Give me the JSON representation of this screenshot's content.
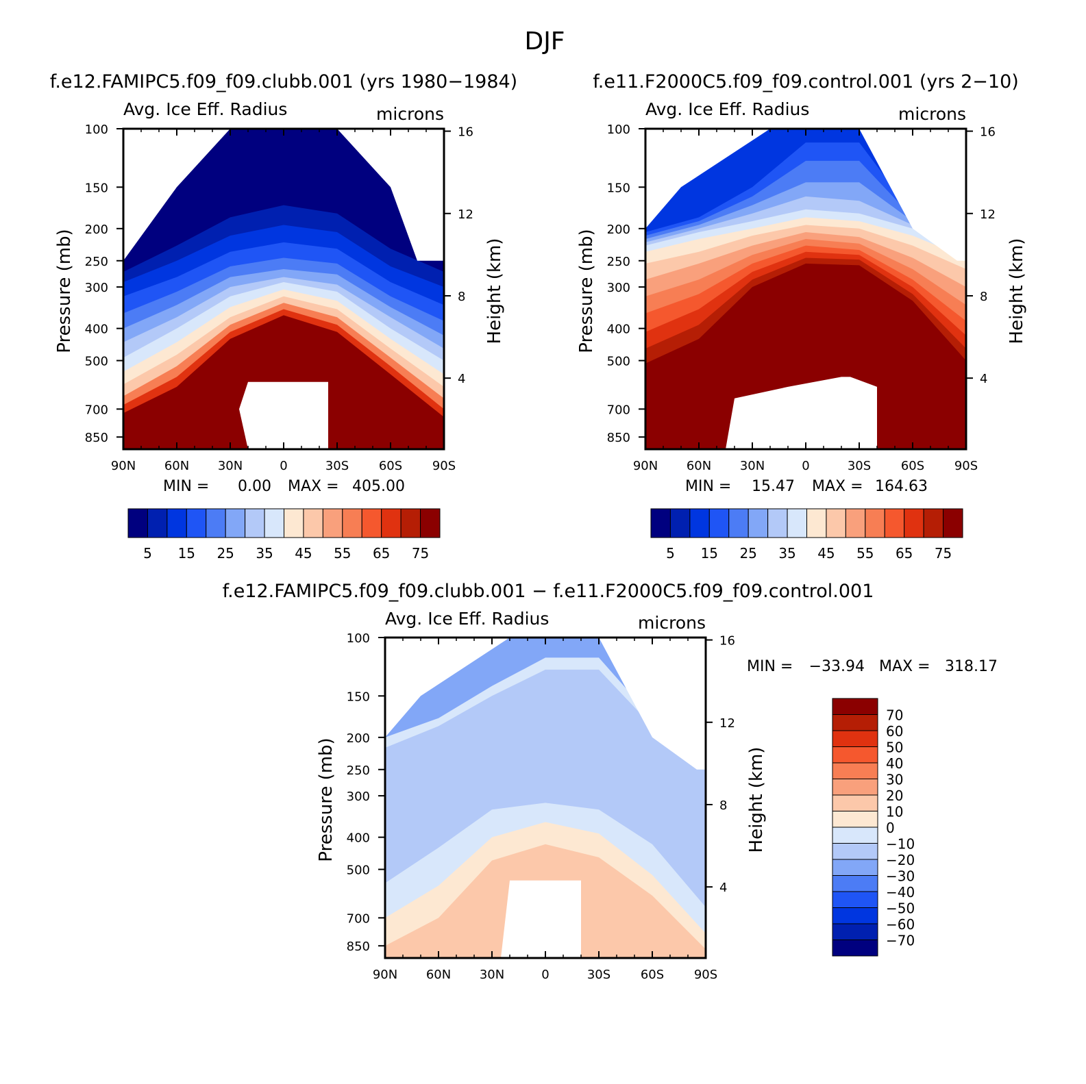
{
  "title": "DJF",
  "colors": {
    "scale_abs": [
      "#00007f",
      "#0020b0",
      "#0036e0",
      "#1f55f5",
      "#4c7cf5",
      "#82a7f7",
      "#b3c9f8",
      "#d8e7fb",
      "#fde8d2",
      "#fcc8aa",
      "#f9a07c",
      "#f77e54",
      "#f5582e",
      "#e03210",
      "#b51e05",
      "#8b0000"
    ],
    "scale_diff": [
      "#00007f",
      "#0020b0",
      "#0036e0",
      "#1f55f5",
      "#4c7cf5",
      "#82a7f7",
      "#b3c9f8",
      "#d8e7fb",
      "#fde8d2",
      "#fcc8aa",
      "#f9a07c",
      "#f77e54",
      "#f5582e",
      "#e03210",
      "#b51e05",
      "#8b0000"
    ]
  },
  "panels": [
    {
      "id": "clubb",
      "header": "f.e12.FAMIPC5.f09_f09.clubb.001 (yrs 1980−1984)",
      "left_label": "Avg. Ice Eff. Radius",
      "right_label": "microns",
      "ylabel": "Pressure (mb)",
      "y2label": "Height (km)",
      "min_label": "MIN =",
      "min_value": "0.00",
      "max_label": "MAX =",
      "max_value": "405.00"
    },
    {
      "id": "control",
      "header": "f.e11.F2000C5.f09_f09.control.001 (yrs 2−10)",
      "left_label": "Avg. Ice Eff. Radius",
      "right_label": "microns",
      "ylabel": "Pressure (mb)",
      "y2label": "Height (km)",
      "min_label": "MIN =",
      "min_value": "15.47",
      "max_label": "MAX =",
      "max_value": "164.63"
    },
    {
      "id": "diff",
      "header": "f.e12.FAMIPC5.f09_f09.clubb.001 − f.e11.F2000C5.f09_f09.control.001",
      "left_label": "Avg. Ice Eff. Radius",
      "right_label": "microns",
      "ylabel": "Pressure (mb)",
      "y2label": "Height (km)",
      "min_label": "MIN =",
      "min_value": "−33.94",
      "max_label": "MAX =",
      "max_value": "318.17"
    }
  ],
  "chart_data": [
    {
      "type": "heatmap",
      "title": "f.e12.FAMIPC5.f09_f09.clubb.001 (yrs 1980−1984)",
      "subtitle_left": "Avg. Ice Eff. Radius",
      "units": "microns",
      "xlabel": "",
      "ylabel": "Pressure (mb)",
      "y2label": "Height (km)",
      "x_ticks": [
        "90N",
        "60N",
        "30N",
        "0",
        "30S",
        "60S",
        "90S"
      ],
      "x_range": [
        90,
        -90
      ],
      "y_ticks": [
        100,
        150,
        200,
        250,
        300,
        400,
        500,
        700,
        850
      ],
      "y_range": [
        100,
        925
      ],
      "y2_ticks": [
        16,
        12,
        8,
        4
      ],
      "colorbar_labels": [
        "5",
        "15",
        "25",
        "35",
        "45",
        "55",
        "65",
        "75"
      ],
      "levels": [
        5,
        10,
        15,
        20,
        25,
        30,
        35,
        40,
        45,
        50,
        55,
        60,
        65,
        70,
        75
      ],
      "min": 0.0,
      "max": 405.0,
      "field_description": "small radii (5–20) at upper levels rising to >75 microns below ~400 mb",
      "tops": [
        [
          90,
          250
        ],
        [
          60,
          150
        ],
        [
          30,
          100
        ],
        [
          0,
          100
        ],
        [
          -30,
          100
        ],
        [
          -60,
          150
        ],
        [
          -75,
          250
        ],
        [
          -90,
          250
        ]
      ],
      "bands": [
        {
          "lat": [
            90,
            60,
            30,
            0,
            -30,
            -60,
            -90
          ],
          "p": [
            270,
            225,
            185,
            170,
            180,
            230,
            270
          ],
          "level": 5
        },
        {
          "lat": [
            90,
            60,
            30,
            0,
            -30,
            -60,
            -90
          ],
          "p": [
            290,
            250,
            210,
            195,
            205,
            260,
            300
          ],
          "level": 10
        },
        {
          "lat": [
            90,
            60,
            30,
            0,
            -30,
            -60,
            -90
          ],
          "p": [
            320,
            280,
            235,
            220,
            230,
            290,
            340
          ],
          "level": 15
        },
        {
          "lat": [
            90,
            60,
            30,
            0,
            -30,
            -60,
            -90
          ],
          "p": [
            360,
            310,
            260,
            245,
            255,
            320,
            380
          ],
          "level": 20
        },
        {
          "lat": [
            90,
            60,
            30,
            0,
            -30,
            -60,
            -90
          ],
          "p": [
            400,
            340,
            280,
            265,
            275,
            345,
            420
          ],
          "level": 25
        },
        {
          "lat": [
            90,
            60,
            30,
            0,
            -30,
            -60,
            -90
          ],
          "p": [
            440,
            370,
            300,
            280,
            295,
            370,
            460
          ],
          "level": 30
        },
        {
          "lat": [
            90,
            60,
            30,
            0,
            -30,
            -60,
            -90
          ],
          "p": [
            490,
            400,
            320,
            290,
            310,
            400,
            500
          ],
          "level": 35
        },
        {
          "lat": [
            90,
            60,
            30,
            0,
            -30,
            -60,
            -90
          ],
          "p": [
            540,
            440,
            345,
            305,
            330,
            430,
            550
          ],
          "level": 40
        },
        {
          "lat": [
            90,
            60,
            30,
            0,
            -30,
            -60,
            -90
          ],
          "p": [
            590,
            480,
            370,
            320,
            350,
            460,
            600
          ],
          "level": 45
        },
        {
          "lat": [
            90,
            60,
            30,
            0,
            -30,
            -60,
            -90
          ],
          "p": [
            640,
            520,
            390,
            335,
            370,
            490,
            650
          ],
          "level": 55
        },
        {
          "lat": [
            90,
            60,
            30,
            0,
            -30,
            -60,
            -90
          ],
          "p": [
            680,
            560,
            410,
            350,
            390,
            520,
            700
          ],
          "level": 65
        },
        {
          "lat": [
            90,
            60,
            30,
            0,
            -30,
            -60,
            -90
          ],
          "p": [
            720,
            600,
            430,
            365,
            410,
            550,
            740
          ],
          "level": 75
        }
      ],
      "holes": [
        [
          [
            -25,
            925
          ],
          [
            -25,
            580
          ],
          [
            20,
            580
          ],
          [
            25,
            700
          ],
          [
            20,
            925
          ]
        ]
      ]
    },
    {
      "type": "heatmap",
      "title": "f.e11.F2000C5.f09_f09.control.001 (yrs 2−10)",
      "subtitle_left": "Avg. Ice Eff. Radius",
      "units": "microns",
      "xlabel": "",
      "ylabel": "Pressure (mb)",
      "y2label": "Height (km)",
      "x_ticks": [
        "90N",
        "60N",
        "30N",
        "0",
        "30S",
        "60S",
        "90S"
      ],
      "x_range": [
        90,
        -90
      ],
      "y_ticks": [
        100,
        150,
        200,
        250,
        300,
        400,
        500,
        700,
        850
      ],
      "y_range": [
        100,
        925
      ],
      "y2_ticks": [
        16,
        12,
        8,
        4
      ],
      "colorbar_labels": [
        "5",
        "15",
        "25",
        "35",
        "45",
        "55",
        "65",
        "75"
      ],
      "levels": [
        5,
        10,
        15,
        20,
        25,
        30,
        35,
        40,
        45,
        50,
        55,
        60,
        65,
        70,
        75
      ],
      "min": 15.47,
      "max": 164.63,
      "field_description": "small radii near tropical tropopause, >75 microns below ~300 mb",
      "tops": [
        [
          90,
          200
        ],
        [
          70,
          150
        ],
        [
          20,
          100
        ],
        [
          0,
          100
        ],
        [
          -30,
          100
        ],
        [
          -60,
          200
        ],
        [
          -85,
          250
        ],
        [
          -90,
          250
        ]
      ],
      "bands": [
        {
          "lat": [
            90,
            60,
            30,
            0,
            -30,
            -60,
            -90
          ],
          "p": [
            205,
            185,
            150,
            110,
            110,
            180,
            215
          ],
          "level": 15
        },
        {
          "lat": [
            90,
            60,
            30,
            0,
            -30,
            -60,
            -90
          ],
          "p": [
            210,
            190,
            160,
            125,
            125,
            185,
            220
          ],
          "level": 20
        },
        {
          "lat": [
            90,
            60,
            30,
            0,
            -30,
            -60,
            -90
          ],
          "p": [
            215,
            195,
            170,
            145,
            145,
            190,
            225
          ],
          "level": 25
        },
        {
          "lat": [
            90,
            60,
            30,
            0,
            -30,
            -60,
            -90
          ],
          "p": [
            220,
            200,
            180,
            160,
            165,
            195,
            230
          ],
          "level": 30
        },
        {
          "lat": [
            90,
            60,
            30,
            0,
            -30,
            -60,
            -90
          ],
          "p": [
            225,
            205,
            190,
            175,
            180,
            200,
            235
          ],
          "level": 35
        },
        {
          "lat": [
            90,
            60,
            30,
            0,
            -30,
            -60,
            -90
          ],
          "p": [
            235,
            215,
            200,
            185,
            190,
            210,
            245
          ],
          "level": 40
        },
        {
          "lat": [
            90,
            60,
            30,
            0,
            -30,
            -60,
            -90
          ],
          "p": [
            255,
            235,
            210,
            195,
            200,
            225,
            265
          ],
          "level": 45
        },
        {
          "lat": [
            90,
            60,
            30,
            0,
            -30,
            -60,
            -90
          ],
          "p": [
            285,
            255,
            225,
            205,
            212,
            245,
            300
          ],
          "level": 50
        },
        {
          "lat": [
            90,
            60,
            30,
            0,
            -30,
            -60,
            -90
          ],
          "p": [
            320,
            285,
            240,
            215,
            222,
            265,
            340
          ],
          "level": 55
        },
        {
          "lat": [
            90,
            60,
            30,
            0,
            -30,
            -60,
            -90
          ],
          "p": [
            360,
            315,
            255,
            225,
            232,
            285,
            380
          ],
          "level": 60
        },
        {
          "lat": [
            90,
            60,
            30,
            0,
            -30,
            -60,
            -90
          ],
          "p": [
            410,
            350,
            270,
            235,
            240,
            300,
            420
          ],
          "level": 65
        },
        {
          "lat": [
            90,
            60,
            30,
            0,
            -30,
            -60,
            -90
          ],
          "p": [
            460,
            390,
            285,
            245,
            248,
            315,
            460
          ],
          "level": 70
        },
        {
          "lat": [
            90,
            60,
            30,
            0,
            -30,
            -60,
            -90
          ],
          "p": [
            510,
            430,
            300,
            255,
            258,
            330,
            500
          ],
          "level": 75
        }
      ],
      "holes": [
        [
          [
            -40,
            925
          ],
          [
            -40,
            600
          ],
          [
            -25,
            560
          ],
          [
            -20,
            560
          ],
          [
            10,
            600
          ],
          [
            40,
            650
          ],
          [
            45,
            925
          ]
        ]
      ]
    },
    {
      "type": "heatmap",
      "title": "f.e12.FAMIPC5.f09_f09.clubb.001 − f.e11.F2000C5.f09_f09.control.001",
      "subtitle_left": "Avg. Ice Eff. Radius",
      "units": "microns",
      "xlabel": "",
      "ylabel": "Pressure (mb)",
      "y2label": "Height (km)",
      "x_ticks": [
        "90N",
        "60N",
        "30N",
        "0",
        "30S",
        "60S",
        "90S"
      ],
      "x_range": [
        90,
        -90
      ],
      "y_ticks": [
        100,
        150,
        200,
        250,
        300,
        400,
        500,
        700,
        850
      ],
      "y_range": [
        100,
        925
      ],
      "y2_ticks": [
        16,
        12,
        8,
        4
      ],
      "colorbar_labels": [
        "70",
        "60",
        "50",
        "40",
        "30",
        "20",
        "10",
        "0",
        "−10",
        "−20",
        "−30",
        "−40",
        "−50",
        "−60",
        "−70"
      ],
      "levels": [
        -70,
        -60,
        -50,
        -40,
        -30,
        -20,
        -10,
        0,
        10,
        20,
        30,
        40,
        50,
        60,
        70
      ],
      "min": -33.94,
      "max": 318.17,
      "field_description": "negative (blue) differences aloft, positive (red) differences in lower troposphere",
      "tops": [
        [
          90,
          200
        ],
        [
          70,
          150
        ],
        [
          20,
          100
        ],
        [
          0,
          100
        ],
        [
          -30,
          100
        ],
        [
          -60,
          200
        ],
        [
          -85,
          250
        ],
        [
          -90,
          250
        ]
      ],
      "bands": [
        {
          "lat": [
            90,
            60,
            30,
            0,
            -30,
            -60,
            -90
          ],
          "p": [
            200,
            175,
            140,
            115,
            115,
            175,
            240
          ],
          "level": -10
        },
        {
          "lat": [
            90,
            60,
            30,
            0,
            -30,
            -60,
            -90
          ],
          "p": [
            215,
            185,
            150,
            125,
            125,
            185,
            250
          ],
          "level": -20
        },
        {
          "lat": [
            90,
            60,
            30,
            0,
            -30,
            -60,
            -90
          ],
          "p": [
            550,
            430,
            330,
            315,
            330,
            420,
            650
          ],
          "level": -10
        },
        {
          "lat": [
            90,
            60,
            30,
            0,
            -30,
            -60,
            -90
          ],
          "p": [
            700,
            560,
            400,
            360,
            390,
            520,
            780
          ],
          "level": 0
        },
        {
          "lat": [
            90,
            60,
            30,
            0,
            -30,
            -60,
            -90
          ],
          "p": [
            850,
            700,
            470,
            420,
            460,
            600,
            870
          ],
          "level": 10
        }
      ],
      "holes": [
        [
          [
            -20,
            925
          ],
          [
            -20,
            540
          ],
          [
            20,
            540
          ],
          [
            25,
            925
          ]
        ]
      ]
    }
  ]
}
